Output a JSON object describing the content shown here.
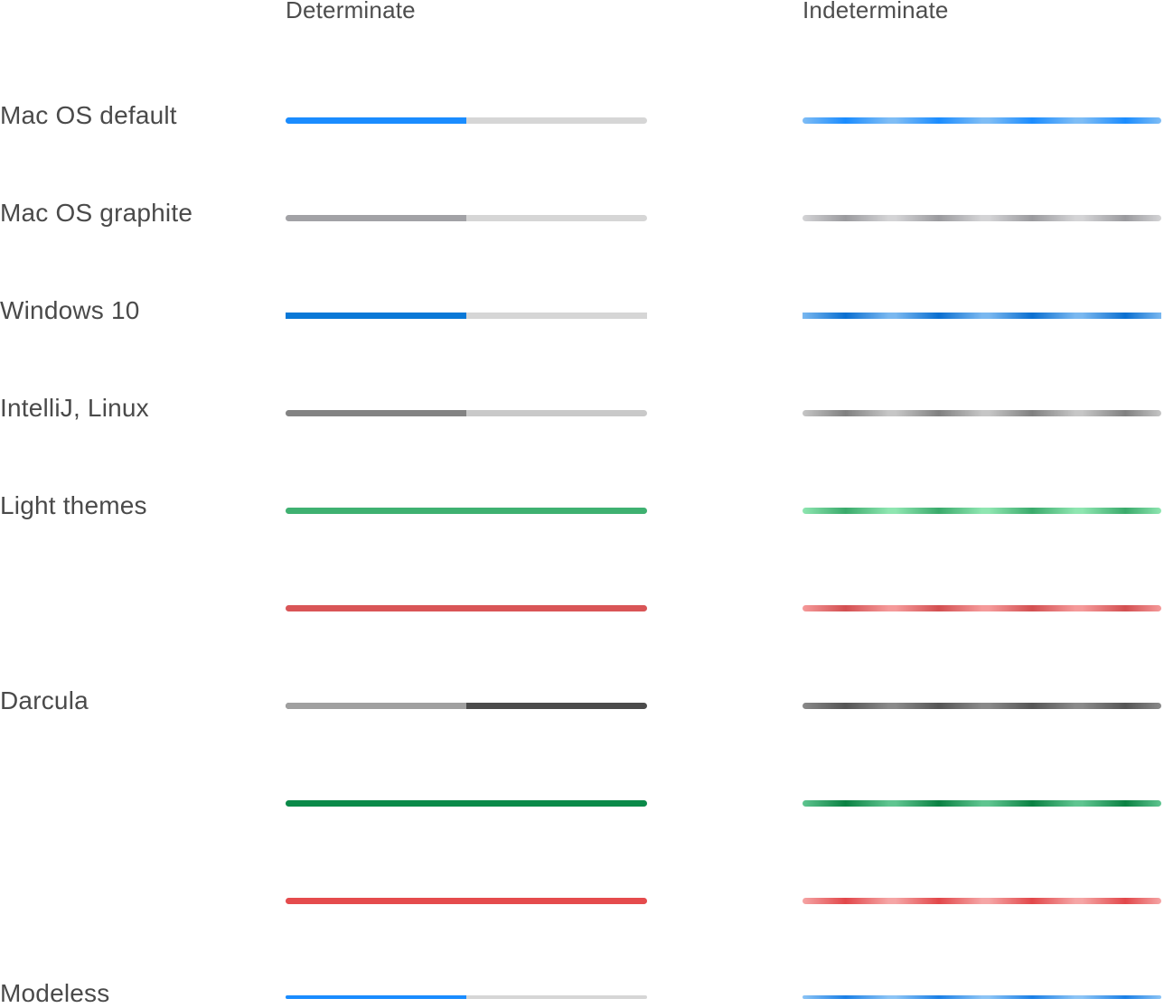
{
  "headers": {
    "determinate": "Determinate",
    "indeterminate": "Indeterminate"
  },
  "rows": [
    {
      "label": "Mac OS default",
      "progress": 0.5,
      "fill_color": "#1a8cff",
      "track_color": "#d6d6d6",
      "indeterminate_colors": [
        "#7fbdf5",
        "#1a8cff"
      ]
    },
    {
      "label": "Mac OS graphite",
      "progress": 0.5,
      "fill_color": "#a2a2a6",
      "track_color": "#d6d6d6",
      "indeterminate_colors": [
        "#d4d4d6",
        "#9a9a9e"
      ]
    },
    {
      "label": "Windows 10",
      "progress": 0.5,
      "fill_color": "#0a78d7",
      "track_color": "#d6d6d6",
      "indeterminate_colors": [
        "#7ab8f0",
        "#0a6fd1"
      ]
    },
    {
      "label": "IntelliJ, Linux",
      "progress": 0.5,
      "fill_color": "#838383",
      "track_color": "#c9c9c9",
      "indeterminate_colors": [
        "#c6c6c6",
        "#808080"
      ]
    },
    {
      "label": "Light themes",
      "progress": 1.0,
      "fill_color": "#3fb171",
      "track_color": "#d6d6d6",
      "indeterminate_colors": [
        "#8fe6b1",
        "#3aaa6b"
      ]
    },
    {
      "label": "",
      "progress": 1.0,
      "fill_color": "#d95557",
      "track_color": "#d6d6d6",
      "indeterminate_colors": [
        "#f59a9a",
        "#d34f51"
      ]
    },
    {
      "label": "Darcula",
      "progress": 0.5,
      "fill_color": "#a0a0a0",
      "track_color": "#4b4b4b",
      "indeterminate_colors": [
        "#8a8a8a",
        "#555555"
      ]
    },
    {
      "label": "",
      "progress": 1.0,
      "fill_color": "#0b8a49",
      "track_color": "#d6d6d6",
      "indeterminate_colors": [
        "#5fc590",
        "#0a8142"
      ]
    },
    {
      "label": "",
      "progress": 1.0,
      "fill_color": "#e54b4d",
      "track_color": "#d6d6d6",
      "indeterminate_colors": [
        "#f5a5a5",
        "#e2474a"
      ]
    },
    {
      "label": "Modeless",
      "progress": 0.5,
      "fill_color": "#1a8cff",
      "track_color": "#d6d6d6",
      "indeterminate_colors": [
        "#8cc4f5",
        "#1a7fe6"
      ]
    }
  ]
}
